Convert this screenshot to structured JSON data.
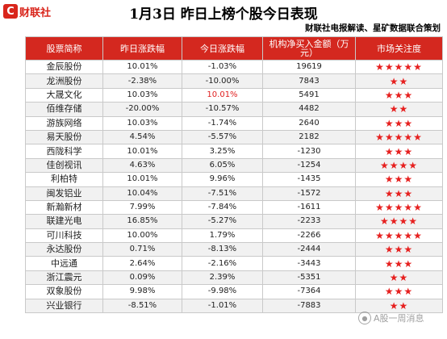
{
  "logo": {
    "mark": "C",
    "text": "财联社"
  },
  "title": "1月3日  昨日上榜个股今日表现",
  "subtitle": "财联社电报解读、星矿数据联合策划",
  "colors": {
    "header_bg": "#d4281f",
    "accent": "#e02020",
    "star": "#e6201f"
  },
  "table": {
    "headers": [
      "股票简称",
      "昨日涨跌幅",
      "今日涨跌幅",
      "机构净买入金额（万元）",
      "市场关注度"
    ],
    "rows": [
      {
        "name": "金辰股份",
        "yesterday": "10.01%",
        "today": "-1.03%",
        "net_buy": "19619",
        "stars": "★★★★★",
        "rating": 5
      },
      {
        "name": "龙洲股份",
        "yesterday": "-2.38%",
        "today": "-10.00%",
        "net_buy": "7843",
        "stars": "★★",
        "rating": 2
      },
      {
        "name": "大晟文化",
        "yesterday": "10.03%",
        "today": "10.01%",
        "net_buy": "5491",
        "stars": "★★★",
        "rating": 3,
        "today_red": true
      },
      {
        "name": "佰维存储",
        "yesterday": "-20.00%",
        "today": "-10.57%",
        "net_buy": "4482",
        "stars": "★★",
        "rating": 2
      },
      {
        "name": "游族网络",
        "yesterday": "10.03%",
        "today": "-1.74%",
        "net_buy": "2640",
        "stars": "★★★",
        "rating": 3
      },
      {
        "name": "易天股份",
        "yesterday": "4.54%",
        "today": "-5.57%",
        "net_buy": "2182",
        "stars": "★★★★★",
        "rating": 5
      },
      {
        "name": "西陇科学",
        "yesterday": "10.01%",
        "today": "3.25%",
        "net_buy": "-1230",
        "stars": "★★★",
        "rating": 3
      },
      {
        "name": "佳创视讯",
        "yesterday": "4.63%",
        "today": "6.05%",
        "net_buy": "-1254",
        "stars": "★★★★",
        "rating": 4
      },
      {
        "name": "利柏特",
        "yesterday": "10.01%",
        "today": "9.96%",
        "net_buy": "-1435",
        "stars": "★★★",
        "rating": 3
      },
      {
        "name": "闽发铝业",
        "yesterday": "10.04%",
        "today": "-7.51%",
        "net_buy": "-1572",
        "stars": "★★★",
        "rating": 3
      },
      {
        "name": "新瀚新材",
        "yesterday": "7.99%",
        "today": "-7.84%",
        "net_buy": "-1611",
        "stars": "★★★★★",
        "rating": 5
      },
      {
        "name": "联建光电",
        "yesterday": "16.85%",
        "today": "-5.27%",
        "net_buy": "-2233",
        "stars": "★★★★",
        "rating": 4
      },
      {
        "name": "可川科技",
        "yesterday": "10.00%",
        "today": "1.79%",
        "net_buy": "-2266",
        "stars": "★★★★★",
        "rating": 5
      },
      {
        "name": "永达股份",
        "yesterday": "0.71%",
        "today": "-8.13%",
        "net_buy": "-2444",
        "stars": "★★★",
        "rating": 3
      },
      {
        "name": "中远通",
        "yesterday": "2.64%",
        "today": "-2.16%",
        "net_buy": "-3443",
        "stars": "★★★",
        "rating": 3
      },
      {
        "name": "浙江震元",
        "yesterday": "0.09%",
        "today": "2.39%",
        "net_buy": "-5351",
        "stars": "★★",
        "rating": 2
      },
      {
        "name": "双象股份",
        "yesterday": "9.98%",
        "today": "-9.98%",
        "net_buy": "-7364",
        "stars": "★★★",
        "rating": 3
      },
      {
        "name": "兴业银行",
        "yesterday": "-8.51%",
        "today": "-1.01%",
        "net_buy": "-7883",
        "stars": "★★",
        "rating": 2
      }
    ]
  },
  "watermark": {
    "icon": "wechat-icon",
    "text": "A股一周消息"
  }
}
